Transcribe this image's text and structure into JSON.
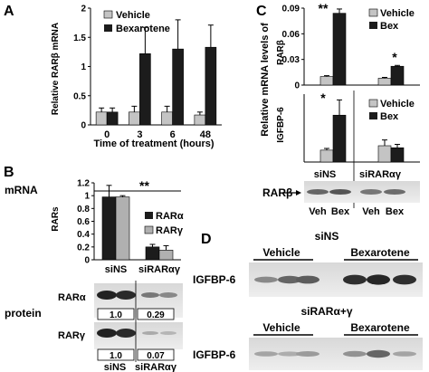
{
  "panels": {
    "A": "A",
    "B": "B",
    "C": "C",
    "D": "D"
  },
  "colors": {
    "vehicle": "#c4c4c4",
    "treated": "#1c1c1c",
    "axis": "#000000",
    "blot_bg": "#e6e6e6"
  },
  "chart_data": [
    {
      "id": "A",
      "type": "bar",
      "ylabel": "Relative RARβ mRNA",
      "xlabel": "Time of treatment (hours)",
      "categories": [
        "0",
        "3",
        "6",
        "48"
      ],
      "yticks": [
        "0",
        "0.5",
        "1",
        "1.5",
        "2"
      ],
      "ylim": [
        0,
        2
      ],
      "series": [
        {
          "name": "Vehicle",
          "color": "#c4c4c4",
          "values": [
            0.22,
            0.22,
            0.22,
            0.17
          ],
          "errors": [
            0.07,
            0.1,
            0.1,
            0.05
          ]
        },
        {
          "name": "Bexarotene",
          "color": "#1c1c1c",
          "values": [
            0.22,
            1.22,
            1.3,
            1.33
          ],
          "errors": [
            0.07,
            0.45,
            0.5,
            0.38
          ]
        }
      ]
    },
    {
      "id": "B",
      "type": "bar",
      "title": "mRNA",
      "ylabel": "RARs",
      "categories": [
        "siNS",
        "siRARαγ"
      ],
      "yticks": [
        "0",
        "0.2",
        "0.4",
        "0.6",
        "0.8",
        "1",
        "1.2"
      ],
      "ylim": [
        0,
        1.2
      ],
      "significance": "**",
      "series": [
        {
          "name": "RARα",
          "color": "#1c1c1c",
          "values": [
            0.98,
            0.2
          ],
          "errors": [
            0.18,
            0.04
          ]
        },
        {
          "name": "RARγ",
          "color": "#b0b0b0",
          "values": [
            0.98,
            0.15
          ],
          "errors": [
            0.02,
            0.07
          ]
        }
      ]
    },
    {
      "id": "C-top",
      "type": "bar",
      "ylabel": "RARβ",
      "categories": [
        "siNS",
        "siRARαγ"
      ],
      "yticks": [
        "0",
        "0.03",
        "0.06",
        "0.09"
      ],
      "ylim": [
        0,
        0.09
      ],
      "significance": [
        "**",
        "*"
      ],
      "series": [
        {
          "name": "Vehicle",
          "color": "#c4c4c4",
          "values": [
            0.01,
            0.008
          ],
          "errors": [
            0.001,
            0.001
          ]
        },
        {
          "name": "Bex",
          "color": "#1c1c1c",
          "values": [
            0.084,
            0.022
          ],
          "errors": [
            0.005,
            0.001
          ]
        }
      ]
    },
    {
      "id": "C-bottom",
      "type": "bar",
      "ylabel": "IGFBP-6",
      "shared_ylabel": "Relative mRNA levels of",
      "categories": [
        "siNS",
        "siRARαγ"
      ],
      "ylim": [
        0,
        2
      ],
      "significance": "*",
      "series": [
        {
          "name": "Vehicle",
          "color": "#c4c4c4",
          "values": [
            0.35,
            0.48
          ],
          "errors": [
            0.05,
            0.17
          ]
        },
        {
          "name": "Bex",
          "color": "#1c1c1c",
          "values": [
            1.38,
            0.42
          ],
          "errors": [
            0.45,
            0.1
          ]
        }
      ]
    }
  ],
  "blots": {
    "B": {
      "row_label": "protein",
      "bands": [
        {
          "label": "RARα",
          "values": [
            "1.0",
            "0.29"
          ]
        },
        {
          "label": "RARγ",
          "values": [
            "1.0",
            "0.07"
          ]
        }
      ],
      "conditions": [
        "siNS",
        "siRARαγ"
      ]
    },
    "C": {
      "label": "RARβ",
      "conditions": [
        "siNS",
        "siRARαγ"
      ],
      "treatments": [
        "Veh",
        "Bex",
        "Veh",
        "Bex"
      ]
    },
    "D": {
      "blocks": [
        {
          "condition": "siNS",
          "groups": [
            "Vehicle",
            "Bexarotene"
          ],
          "label": "IGFBP-6",
          "intensity": [
            0.35,
            0.55,
            0.6,
            0.85,
            0.9,
            0.85
          ]
        },
        {
          "condition": "siRARα+γ",
          "groups": [
            "Vehicle",
            "Bexarotene"
          ],
          "label": "IGFBP-6",
          "intensity": [
            0.2,
            0.15,
            0.25,
            0.3,
            0.55,
            0.2
          ]
        }
      ]
    }
  }
}
